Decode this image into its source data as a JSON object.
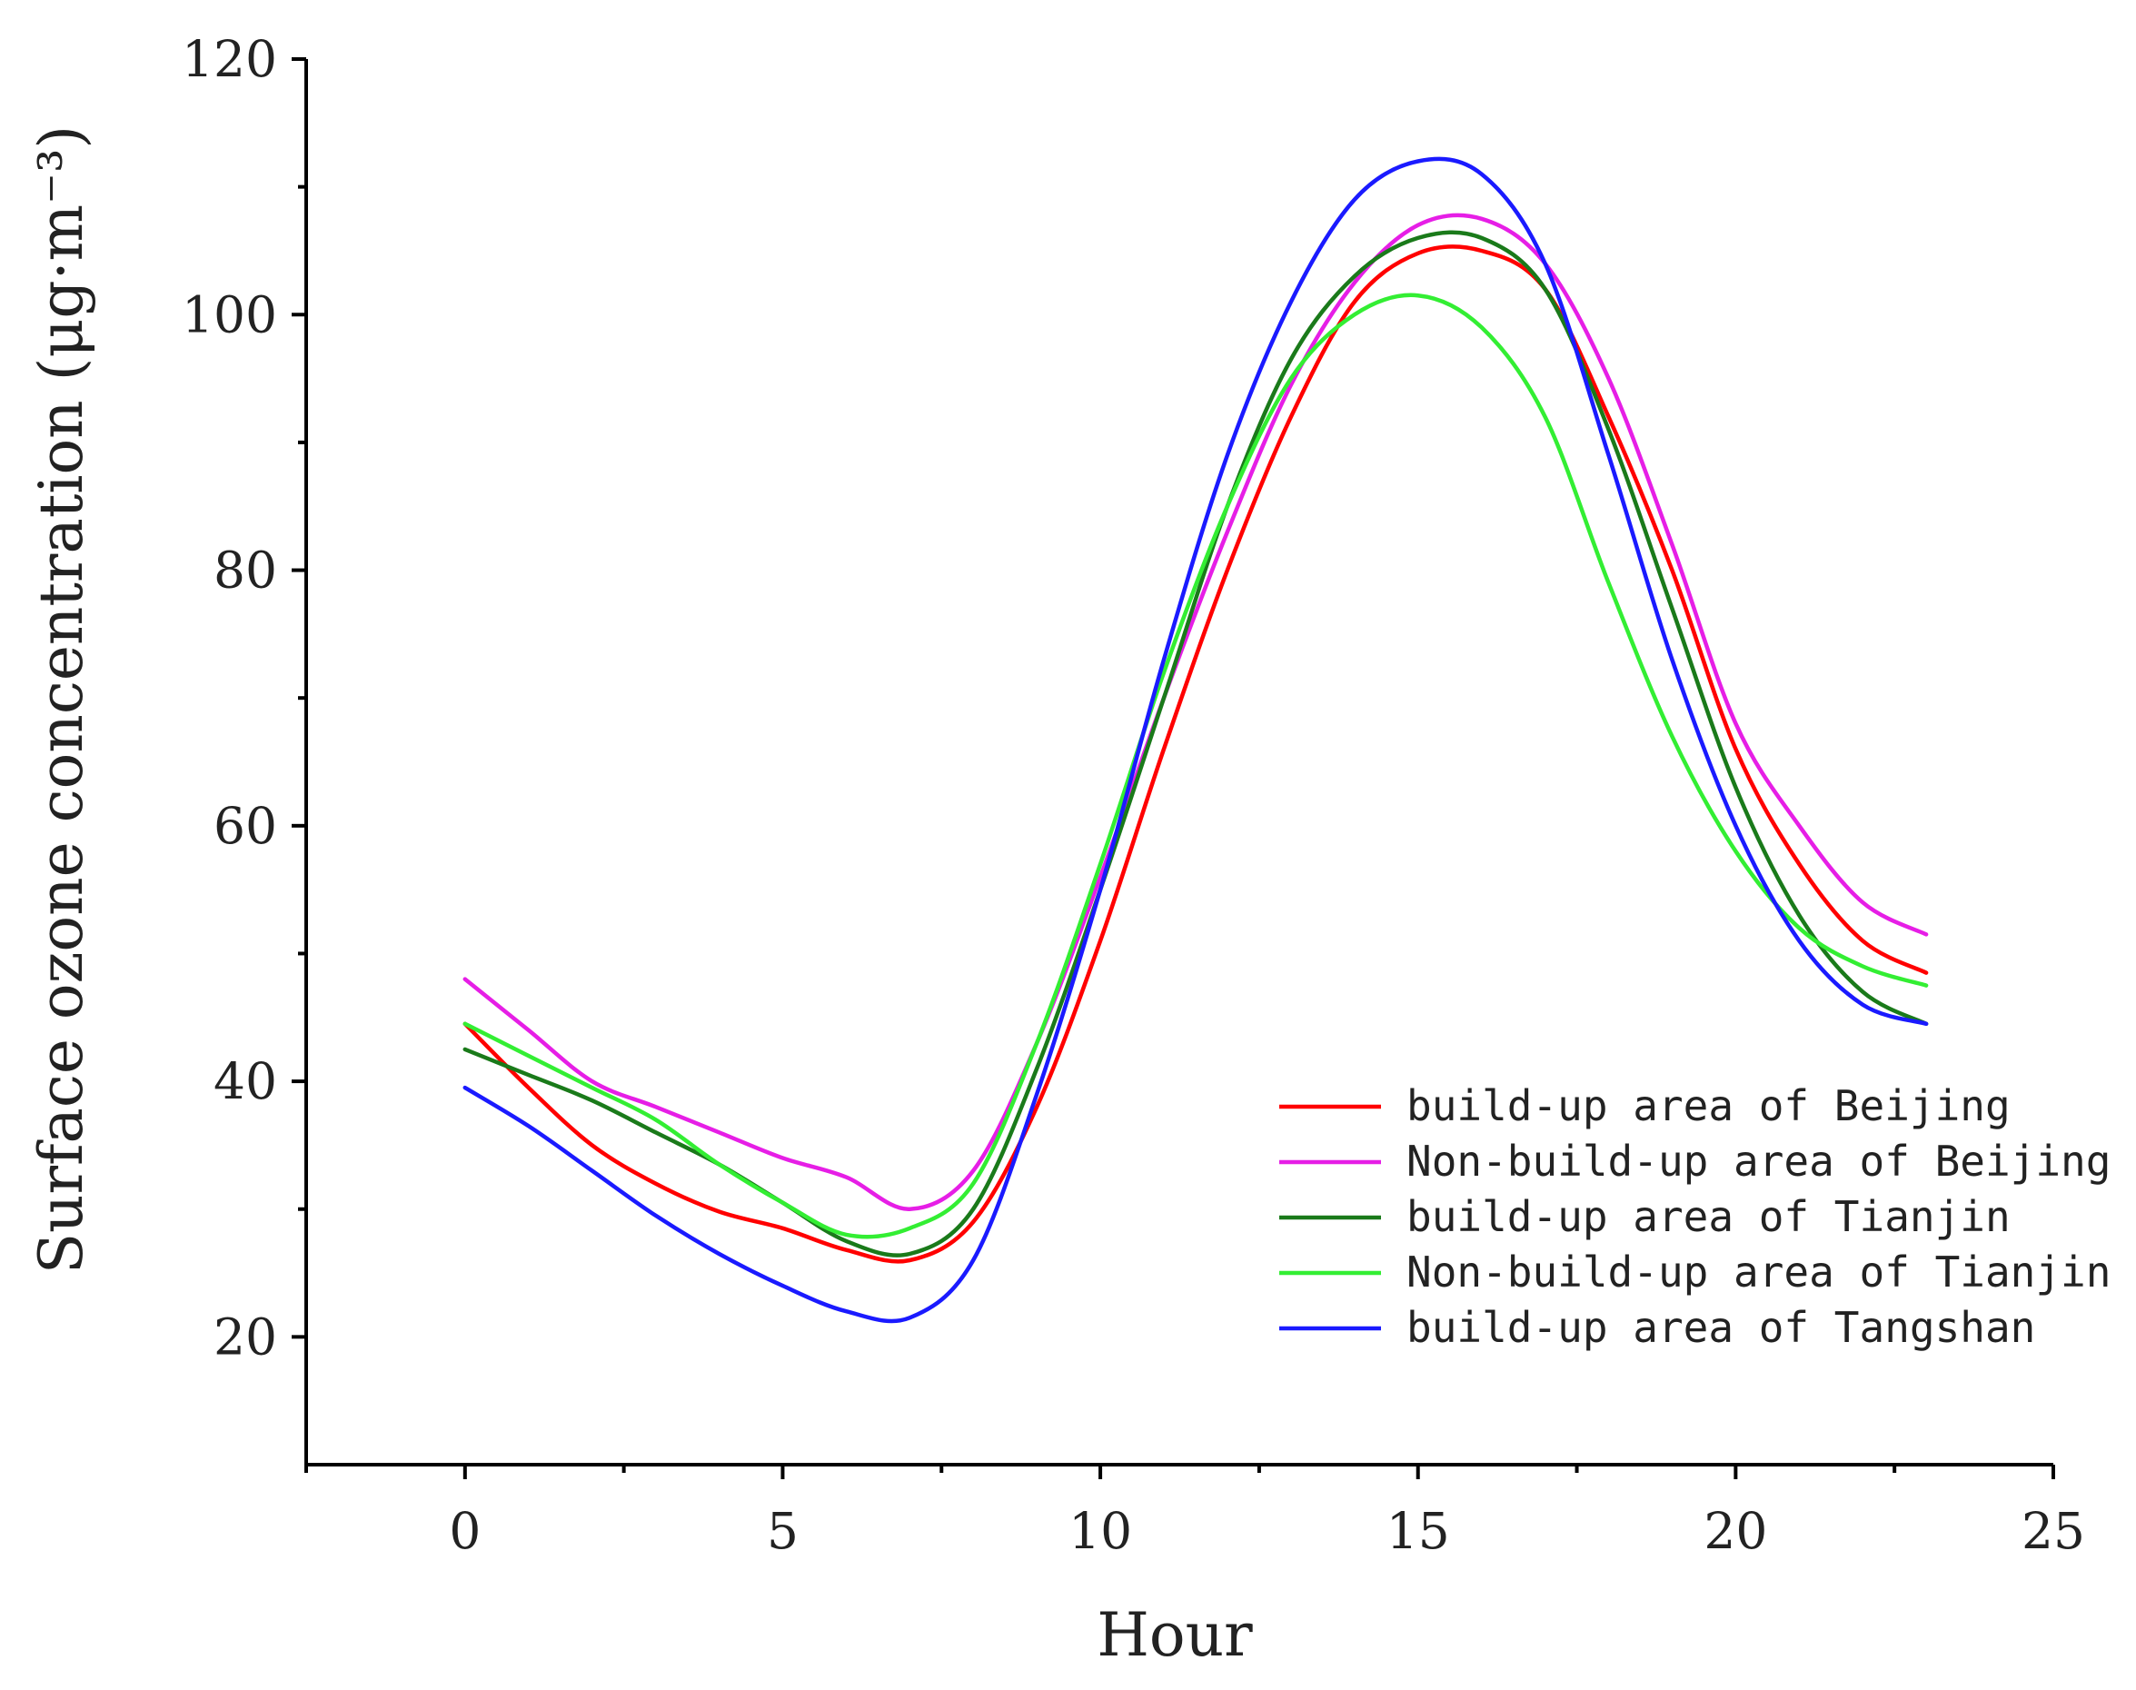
{
  "chart_data": {
    "type": "line",
    "title": "",
    "xlabel": "Hour",
    "ylabel": "Surface ozone concentration (μg·m⁻³)",
    "xlim": [
      -2.5,
      25
    ],
    "ylim": [
      10,
      120
    ],
    "xticks": [
      0,
      5,
      10,
      15,
      20,
      25
    ],
    "yticks": [
      20,
      40,
      60,
      80,
      100,
      120
    ],
    "legend_position": "center-right",
    "grid": false,
    "x": [
      0,
      1,
      2,
      3,
      4,
      5,
      6,
      7,
      8,
      9,
      10,
      11,
      12,
      13,
      14,
      15,
      16,
      17,
      18,
      19,
      20,
      21,
      22,
      23
    ],
    "series": [
      {
        "name": "build-up area of Beijing",
        "color": "#ff0000",
        "values": [
          44.5,
          39.5,
          35,
          32,
          29.8,
          28.5,
          26.8,
          26,
          29,
          38,
          51,
          66,
          80,
          92,
          101,
          104.8,
          105,
          102,
          92,
          80,
          66,
          57,
          51,
          48.5
        ]
      },
      {
        "name": "Non-build-up area of Beijing",
        "color": "#e61ee6",
        "values": [
          48,
          44,
          40,
          38,
          36,
          34,
          32.5,
          30,
          33,
          43,
          56,
          70,
          83,
          94.5,
          102.5,
          107,
          107.5,
          104,
          95,
          82,
          68,
          60,
          54,
          51.5
        ]
      },
      {
        "name": "build-up area of Tianjin",
        "color": "#1a7a1a",
        "values": [
          42.5,
          40.5,
          38.5,
          36,
          33.5,
          30.5,
          27.5,
          26.5,
          30,
          41,
          55,
          70,
          85,
          96.5,
          103,
          106,
          106,
          102,
          91,
          77,
          63,
          53,
          47,
          44.5
        ]
      },
      {
        "name": "Non-build-up area of Tianjin",
        "color": "#33ee33",
        "values": [
          44.5,
          42,
          39.5,
          37,
          33.5,
          30.5,
          28,
          28.5,
          32,
          43,
          57,
          72,
          85,
          95,
          100,
          101.5,
          99,
          92,
          79,
          67,
          58,
          52,
          49,
          47.5
        ]
      },
      {
        "name": "build-up area of Tangshan",
        "color": "#1a1aff",
        "values": [
          39.5,
          36.5,
          33,
          29.5,
          26.5,
          24,
          22,
          21.5,
          26,
          39,
          55,
          73,
          89,
          101,
          109,
          112,
          111,
          104,
          89,
          73,
          60,
          51,
          46,
          44.5
        ]
      }
    ]
  }
}
